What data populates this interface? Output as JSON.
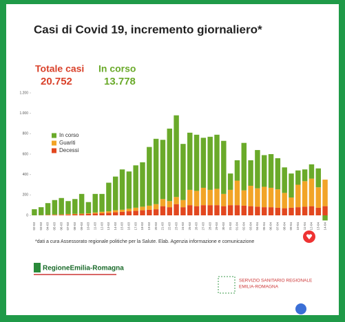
{
  "chart_data": {
    "type": "stacked-bar",
    "title": "Casi di Covid 19, incremento giornaliero*",
    "totals": [
      {
        "label": "Totale casi",
        "value": "20.752",
        "color": "#d9412a"
      },
      {
        "label": "In corso",
        "value": "13.778",
        "color": "#6aaa2a"
      }
    ],
    "categories": [
      "02-03",
      "03-03",
      "04-03",
      "05-03",
      "06-03",
      "07-03",
      "08-03",
      "09-03",
      "10-03",
      "11-03",
      "12-03",
      "13-03",
      "14-03",
      "15-03",
      "16-03",
      "17-03",
      "18-03",
      "19-03",
      "20-03",
      "21-03",
      "22-03",
      "23-03",
      "24-03",
      "25-03",
      "26-03",
      "27-03",
      "28-03",
      "29-03",
      "30-03",
      "31-03",
      "01-04",
      "02-04",
      "03-04",
      "04-04",
      "05-04",
      "06-04",
      "07-04",
      "08-04",
      "09-04",
      "10-04",
      "11-04",
      "12-04",
      "13-04",
      "14-04"
    ],
    "series": [
      {
        "name": "Decessi",
        "color": "#e2471f",
        "values": [
          0,
          2,
          3,
          5,
          6,
          8,
          10,
          12,
          15,
          18,
          20,
          25,
          30,
          35,
          40,
          45,
          50,
          55,
          60,
          90,
          80,
          110,
          80,
          100,
          90,
          100,
          100,
          100,
          90,
          100,
          100,
          95,
          90,
          85,
          80,
          80,
          75,
          70,
          75,
          80,
          85,
          90,
          75,
          90
        ]
      },
      {
        "name": "Guariti",
        "color": "#f2a427",
        "values": [
          0,
          0,
          2,
          3,
          3,
          5,
          5,
          5,
          5,
          10,
          15,
          15,
          20,
          20,
          25,
          30,
          35,
          40,
          50,
          70,
          60,
          70,
          70,
          150,
          150,
          170,
          150,
          160,
          120,
          150,
          240,
          150,
          200,
          180,
          200,
          190,
          180,
          150,
          100,
          220,
          250,
          270,
          200,
          260
        ]
      },
      {
        "name": "In corso",
        "color": "#6aaa2a",
        "values": [
          60,
          78,
          115,
          142,
          161,
          127,
          145,
          193,
          110,
          182,
          175,
          280,
          330,
          395,
          365,
          415,
          435,
          575,
          640,
          580,
          710,
          800,
          550,
          560,
          550,
          490,
          520,
          530,
          520,
          160,
          200,
          465,
          250,
          375,
          310,
          330,
          305,
          250,
          235,
          140,
          115,
          140,
          185,
          -50
        ]
      }
    ],
    "ylim": [
      -60,
      1200
    ],
    "yticks": [
      0,
      200,
      400,
      600,
      800,
      {
        "value": 1000,
        "label": "1.000"
      },
      {
        "value": 1200,
        "label": "1.200"
      }
    ],
    "footnote": "*dati a cura Assessorato regionale politiche per la Salute. Elab. Agenzia informazione e comunicazione"
  },
  "footer": {
    "left_logo": "RegioneEmilia-Romagna",
    "right_logo_line1": "SERVIZIO SANITARIO REGIONALE",
    "right_logo_line2": "EMILIA-ROMAGNA"
  }
}
